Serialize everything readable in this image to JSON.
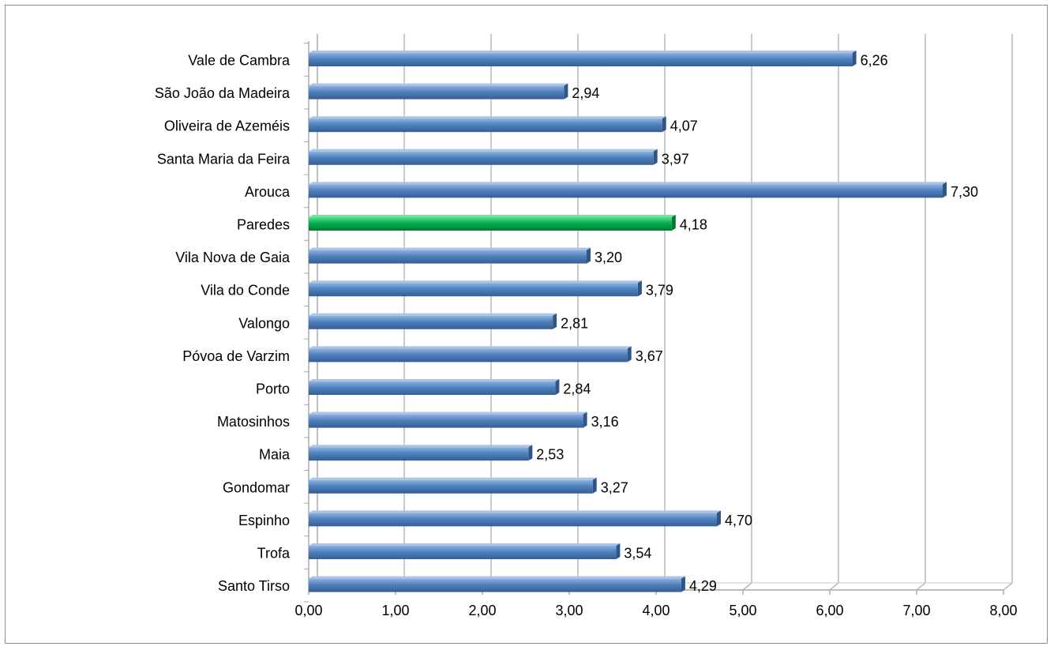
{
  "chart_data": {
    "type": "bar",
    "orientation": "horizontal",
    "categories": [
      "Vale de Cambra",
      "São João da Madeira",
      "Oliveira de Azeméis",
      "Santa Maria da Feira",
      "Arouca",
      "Paredes",
      "Vila Nova de Gaia",
      "Vila do Conde",
      "Valongo",
      "Póvoa de Varzim",
      "Porto",
      "Matosinhos",
      "Maia",
      "Gondomar",
      "Espinho",
      "Trofa",
      "Santo Tirso"
    ],
    "values": [
      6.26,
      2.94,
      4.07,
      3.97,
      7.3,
      4.18,
      3.2,
      3.79,
      2.81,
      3.67,
      2.84,
      3.16,
      2.53,
      3.27,
      4.7,
      3.54,
      4.29
    ],
    "value_labels": [
      "6,26",
      "2,94",
      "4,07",
      "3,97",
      "7,30",
      "4,18",
      "3,20",
      "3,79",
      "2,81",
      "3,67",
      "2,84",
      "3,16",
      "2,53",
      "3,27",
      "4,70",
      "3,54",
      "4,29"
    ],
    "highlighted_category": "Paredes",
    "xlim": [
      0,
      8
    ],
    "xticks": [
      0,
      1,
      2,
      3,
      4,
      5,
      6,
      7,
      8
    ],
    "xtick_labels": [
      "0,00",
      "1,00",
      "2,00",
      "3,00",
      "4,00",
      "5,00",
      "6,00",
      "7,00",
      "8,00"
    ],
    "grid": "vertical",
    "legend": "none",
    "title": "",
    "xlabel": "",
    "ylabel": "",
    "colors": {
      "bar": "#4f81bd",
      "bar_highlight": "#00b050",
      "grid": "#b3b3b3"
    }
  }
}
